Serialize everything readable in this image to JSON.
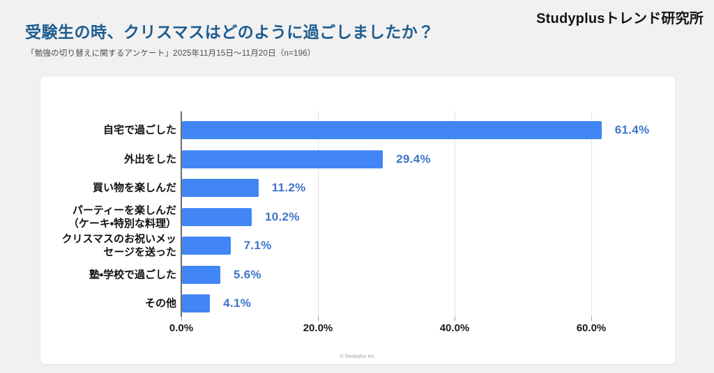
{
  "header": {
    "title": "受験生の時、クリスマスはどのように過ごしましたか？",
    "subtitle": "「勉強の切り替えに関するアンケート」2025年11月15日～11月20日（n=196）",
    "logo": "Studyplusトレンド研究所"
  },
  "chart_data": {
    "type": "bar",
    "orientation": "horizontal",
    "title": "受験生の時、クリスマスはどのように過ごしましたか？",
    "categories": [
      "自宅で過ごした",
      "外出をした",
      "買い物を楽しんだ",
      "パーティーを楽しんだ\n（ケーキ・特別な料理）",
      "クリスマスのお祝いメッ\nセージを送った",
      "塾・学校で過ごした",
      "その他"
    ],
    "values": [
      61.4,
      29.4,
      11.2,
      10.2,
      7.1,
      5.6,
      4.1
    ],
    "value_labels": [
      "61.4%",
      "29.4%",
      "11.2%",
      "10.2%",
      "7.1%",
      "5.6%",
      "4.1%"
    ],
    "xlabel": "",
    "ylabel": "",
    "xlim": [
      0,
      72
    ],
    "x_ticks": {
      "values": [
        0,
        20,
        40,
        60
      ],
      "labels": [
        "0.0%",
        "20.0%",
        "40.0%",
        "60.0%"
      ]
    },
    "grid": "vertical",
    "legend": "none",
    "bar_color": "#4285f4",
    "value_label_color": "#3d74c9"
  },
  "footer": {
    "copyright": "© Studyplus Inc."
  }
}
